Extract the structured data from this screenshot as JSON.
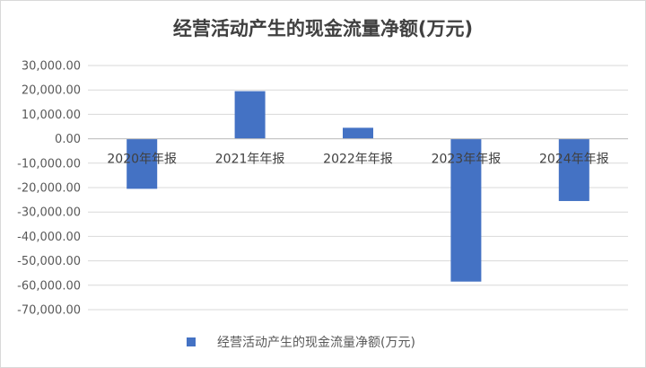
{
  "chart_data": {
    "type": "bar",
    "title": "经营活动产生的现金流量净额(万元)",
    "categories": [
      "2020年年报",
      "2021年年报",
      "2022年年报",
      "2023年年报",
      "2024年年报"
    ],
    "series": [
      {
        "name": "经营活动产生的现金流量净额(万元)",
        "values": [
          -20500,
          19500,
          4500,
          -58500,
          -25500
        ],
        "color": "#4472C4"
      }
    ],
    "ylim": [
      -70000,
      30000
    ],
    "yticks": [
      "30,000.00",
      "20,000.00",
      "10,000.00",
      "0.00",
      "-10,000.00",
      "-20,000.00",
      "-30,000.00",
      "-40,000.00",
      "-50,000.00",
      "-60,000.00",
      "-70,000.00"
    ],
    "ytick_values": [
      30000,
      20000,
      10000,
      0,
      -10000,
      -20000,
      -30000,
      -40000,
      -50000,
      -60000,
      -70000
    ],
    "grid": true,
    "legend_position": "bottom"
  }
}
